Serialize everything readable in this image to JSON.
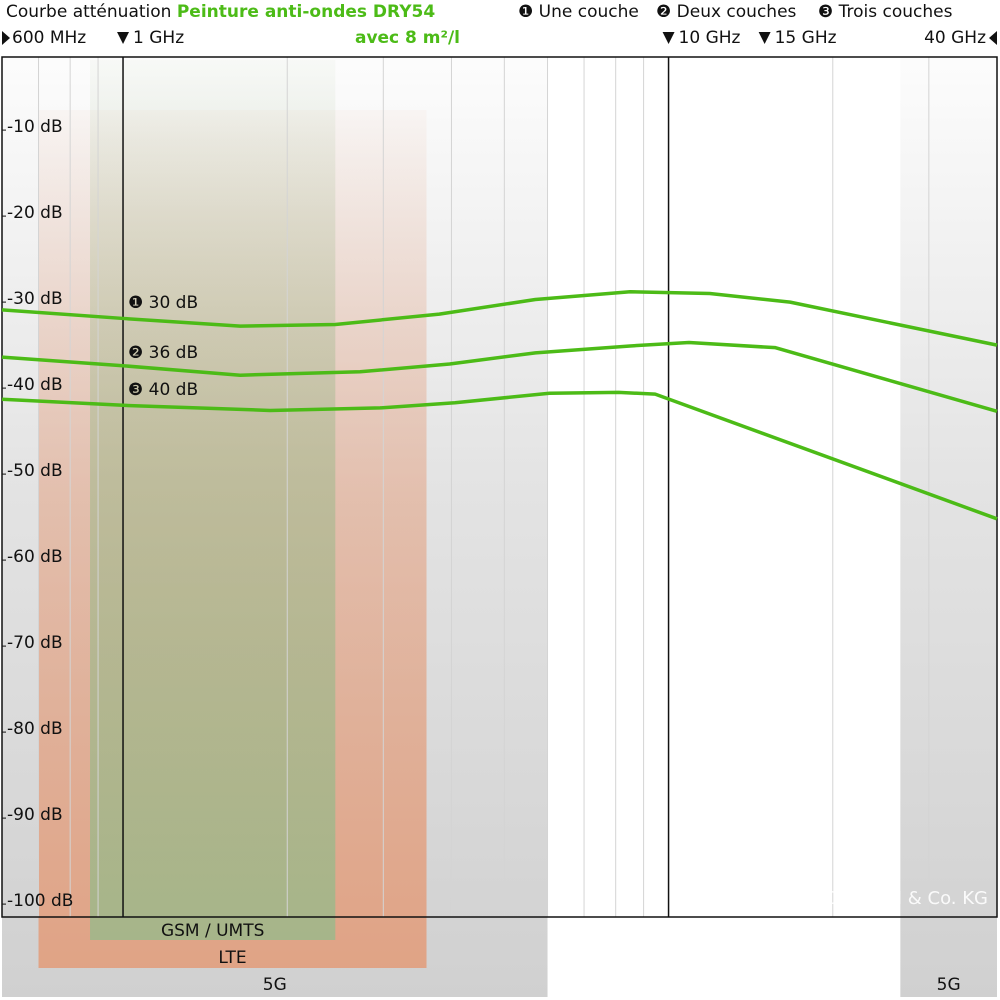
{
  "chart_data": {
    "type": "line",
    "title": "Courbe atténuation",
    "subtitle": "Peinture anti-ondes DRY54",
    "subtitle2": "avec 8 m²/l",
    "log_x": true,
    "xlim": [
      0.6,
      40
    ],
    "xticks": [
      {
        "value": 0.6,
        "label": "600 MHz"
      },
      {
        "value": 1,
        "label": "1 GHz"
      },
      {
        "value": 10,
        "label": "10 GHz"
      },
      {
        "value": 15,
        "label": "15 GHz"
      },
      {
        "value": 40,
        "label": "40 GHz"
      }
    ],
    "x_minor_grid": [
      0.7,
      0.8,
      0.9,
      2,
      3,
      4,
      5,
      6,
      7,
      8,
      9,
      20,
      30
    ],
    "x_major_grid": [
      1,
      10
    ],
    "ylim": [
      -1.5,
      -101.5
    ],
    "yticks": [
      {
        "value": -10,
        "label": "-10 dB"
      },
      {
        "value": -20,
        "label": "-20 dB"
      },
      {
        "value": -30,
        "label": "-30 dB"
      },
      {
        "value": -40,
        "label": "-40 dB"
      },
      {
        "value": -50,
        "label": "-50 dB"
      },
      {
        "value": -60,
        "label": "-60 dB"
      },
      {
        "value": -70,
        "label": "-70 dB"
      },
      {
        "value": -80,
        "label": "-80 dB"
      },
      {
        "value": -90,
        "label": "-90 dB"
      },
      {
        "value": -100,
        "label": "-100 dB"
      }
    ],
    "bands": [
      {
        "name": "5G",
        "range": [
          0.6,
          6
        ],
        "color": "#c8c8c8"
      },
      {
        "name": "5G",
        "range": [
          26.6,
          40
        ],
        "color": "#c8c8c8"
      },
      {
        "name": "LTE",
        "range": [
          0.7,
          3.6
        ],
        "color": "#e39b78"
      },
      {
        "name": "GSM / UMTS",
        "range": [
          0.87,
          2.45
        ],
        "color": "#9cb88a"
      }
    ],
    "series": [
      {
        "name": "❶ Une couche",
        "color": "#4cbb17",
        "x": [
          0.6,
          1,
          1.64,
          2.45,
          3.8,
          5.7,
          8.5,
          11.9,
          16.7,
          40
        ],
        "values": [
          -30.9,
          -31.9,
          -32.8,
          -32.6,
          -31.4,
          -29.7,
          -28.8,
          -29.0,
          -30.0,
          -35.0
        ]
      },
      {
        "name": "❷ Deux couches",
        "color": "#4cbb17",
        "x": [
          0.6,
          1,
          1.64,
          2.72,
          3.97,
          5.7,
          8.5,
          10.9,
          15.7,
          40
        ],
        "values": [
          -36.4,
          -37.4,
          -38.5,
          -38.1,
          -37.2,
          -35.9,
          -35.1,
          -34.7,
          -35.3,
          -42.7
        ]
      },
      {
        "name": "❸ Trois couches",
        "color": "#4cbb17",
        "x": [
          0.6,
          1,
          1.86,
          2.96,
          4.06,
          6.05,
          8.1,
          9.45,
          40
        ],
        "values": [
          -41.3,
          -42.0,
          -42.6,
          -42.3,
          -41.7,
          -40.6,
          -40.5,
          -40.7,
          -55.2
        ]
      }
    ],
    "annotations": [
      "❶ 30 dB",
      "❷ 36 dB",
      "❸ 40 dB"
    ],
    "copyright": "© YSHIELD GmbH & Co. KG"
  }
}
